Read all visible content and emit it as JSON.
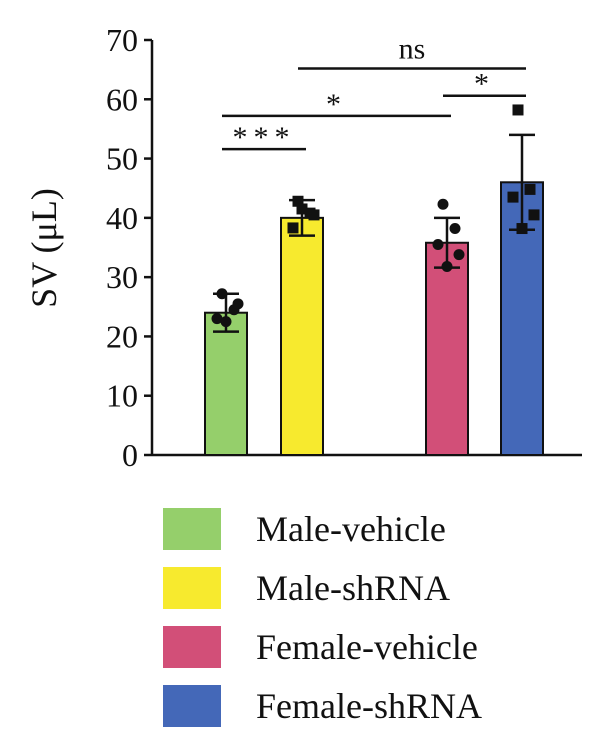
{
  "chart_data": {
    "type": "bar",
    "ylabel": "SV (μL)",
    "ylim": [
      0,
      70
    ],
    "yticks": [
      0,
      10,
      20,
      30,
      40,
      50,
      60,
      70
    ],
    "grid": false,
    "legend_position": "bottom",
    "categories": [
      "Male-vehicle",
      "Male-shRNA",
      "Female-vehicle",
      "Female-shRNA"
    ],
    "values": [
      24,
      40,
      35.8,
      46
    ],
    "errors": [
      3.2,
      3,
      4.2,
      8
    ],
    "colors": [
      "#95cf6b",
      "#f7ea2e",
      "#d24f78",
      "#4468b8"
    ],
    "points": [
      [
        27.2,
        24.5,
        23,
        22.5,
        25.5
      ],
      [
        42.8,
        40.8,
        38.3,
        41.5,
        40.5
      ],
      [
        42.3,
        38.2,
        35.5,
        31.8,
        33.8
      ],
      [
        58.2,
        44.8,
        43.5,
        38.2,
        40.5
      ]
    ],
    "point_markers": [
      "circle",
      "square",
      "circle",
      "square"
    ],
    "significance": [
      {
        "from": 0,
        "to": 1,
        "y": 51.6,
        "label": "***"
      },
      {
        "from": 0,
        "to": 2,
        "y": 57.2,
        "label": "*"
      },
      {
        "from": 2,
        "to": 3,
        "y": 60.6,
        "label": "*"
      },
      {
        "from": 1,
        "to": 3,
        "y": 65.2,
        "label": "ns"
      }
    ]
  }
}
